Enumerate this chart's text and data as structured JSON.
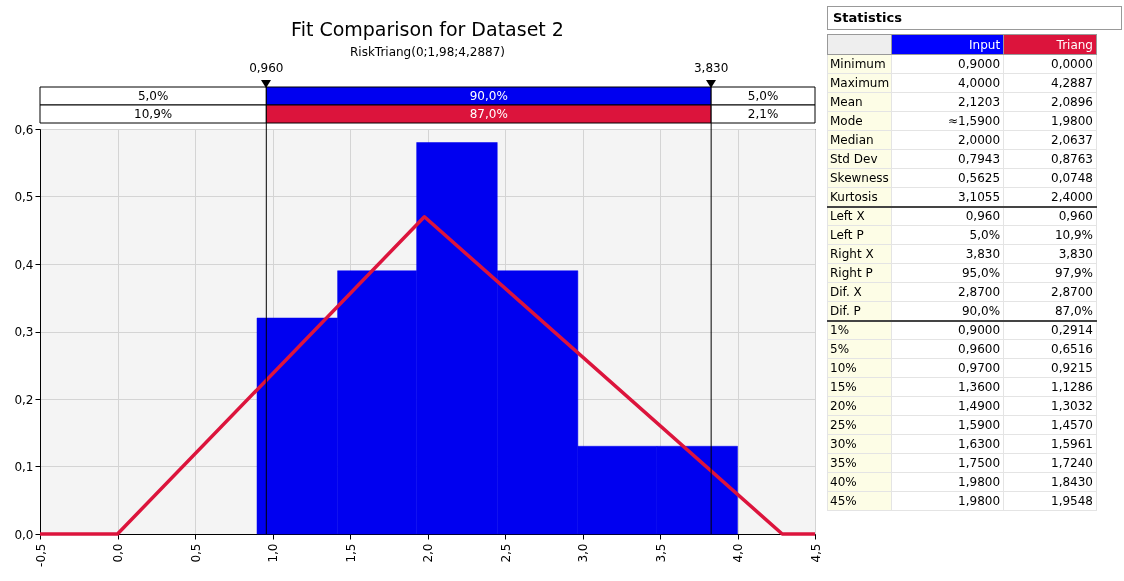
{
  "chart_data": [
    {
      "type": "histogram",
      "title": "Fit Comparison for Dataset 2",
      "subtitle": "RiskTriang(0;1,98;4,2887)",
      "bins": [
        0.9,
        1.42,
        1.93,
        2.45,
        2.97,
        3.48,
        4.0
      ],
      "series": [
        {
          "color": "#0000f0",
          "values": [
            0.32,
            0.39,
            0.58,
            0.39,
            0.13,
            0.13
          ]
        },
        {
          "type": "line",
          "color": "#dc143c",
          "x": [
            -0.5,
            0,
            1.98,
            4.2887,
            4.5
          ],
          "values": [
            0,
            0,
            0.47,
            0,
            0
          ]
        }
      ],
      "xlim": [
        -0.5,
        4.5
      ],
      "ylim": [
        0,
        0.6
      ],
      "xticks": [
        {
          "value": -0.5,
          "label": "-0,5"
        },
        {
          "value": 0,
          "label": "0,0"
        },
        {
          "value": 0.5,
          "label": "0,5"
        },
        {
          "value": 1,
          "label": "1,0"
        },
        {
          "value": 1.5,
          "label": "1,5"
        },
        {
          "value": 2,
          "label": "2,0"
        },
        {
          "value": 2.5,
          "label": "2,5"
        },
        {
          "value": 3,
          "label": "3,0"
        },
        {
          "value": 3.5,
          "label": "3,5"
        },
        {
          "value": 4,
          "label": "4,0"
        },
        {
          "value": 4.5,
          "label": "4,5"
        }
      ],
      "yticks": [
        {
          "value": 0,
          "label": "0,0"
        },
        {
          "value": 0.1,
          "label": "0,1"
        },
        {
          "value": 0.2,
          "label": "0,2"
        },
        {
          "value": 0.3,
          "label": "0,3"
        },
        {
          "value": 0.4,
          "label": "0,4"
        },
        {
          "value": 0.5,
          "label": "0,5"
        },
        {
          "value": 0.6,
          "label": "0,6"
        }
      ],
      "ref_lines": [
        {
          "axis": "x",
          "value": 0.96,
          "label": "0,960",
          "color": "#000000"
        },
        {
          "axis": "x",
          "value": 3.83,
          "label": "3,830",
          "color": "#000000"
        }
      ],
      "annotations": [
        "5,0%",
        "90,0%",
        "5,0%",
        "10,9%",
        "87,0%",
        "2,1%"
      ],
      "grid": true
    },
    {
      "type": "other",
      "title": "Statistics",
      "categories": [
        "Input",
        "Triang"
      ],
      "colors": [
        "#0000ff",
        "#dc143c"
      ],
      "annotations": [
        "Minimum",
        "0,9000",
        "0,0000",
        "Maximum",
        "4,0000",
        "4,2887",
        "Mean",
        "2,1203",
        "2,0896",
        "Mode",
        "≈1,5900",
        "1,9800",
        "Median",
        "2,0000",
        "2,0637",
        "Std Dev",
        "0,7943",
        "0,8763",
        "Skewness",
        "0,5625",
        "0,0748",
        "Kurtosis",
        "3,1055",
        "2,4000",
        "Left X",
        "0,960",
        "0,960",
        "Left P",
        "5,0%",
        "10,9%",
        "Right X",
        "3,830",
        "3,830",
        "Right P",
        "95,0%",
        "97,9%",
        "Dif. X",
        "2,8700",
        "2,8700",
        "Dif. P",
        "90,0%",
        "87,0%",
        "1%",
        "0,9000",
        "0,2914",
        "5%",
        "0,9600",
        "0,6516",
        "10%",
        "0,9700",
        "0,9215",
        "15%",
        "1,3600",
        "1,1286",
        "20%",
        "1,4900",
        "1,3032",
        "25%",
        "1,5900",
        "1,4570",
        "30%",
        "1,6300",
        "1,5961",
        "35%",
        "1,7500",
        "1,7240",
        "40%",
        "1,9800",
        "1,8430",
        "45%",
        "1,9800",
        "1,9548"
      ]
    }
  ]
}
